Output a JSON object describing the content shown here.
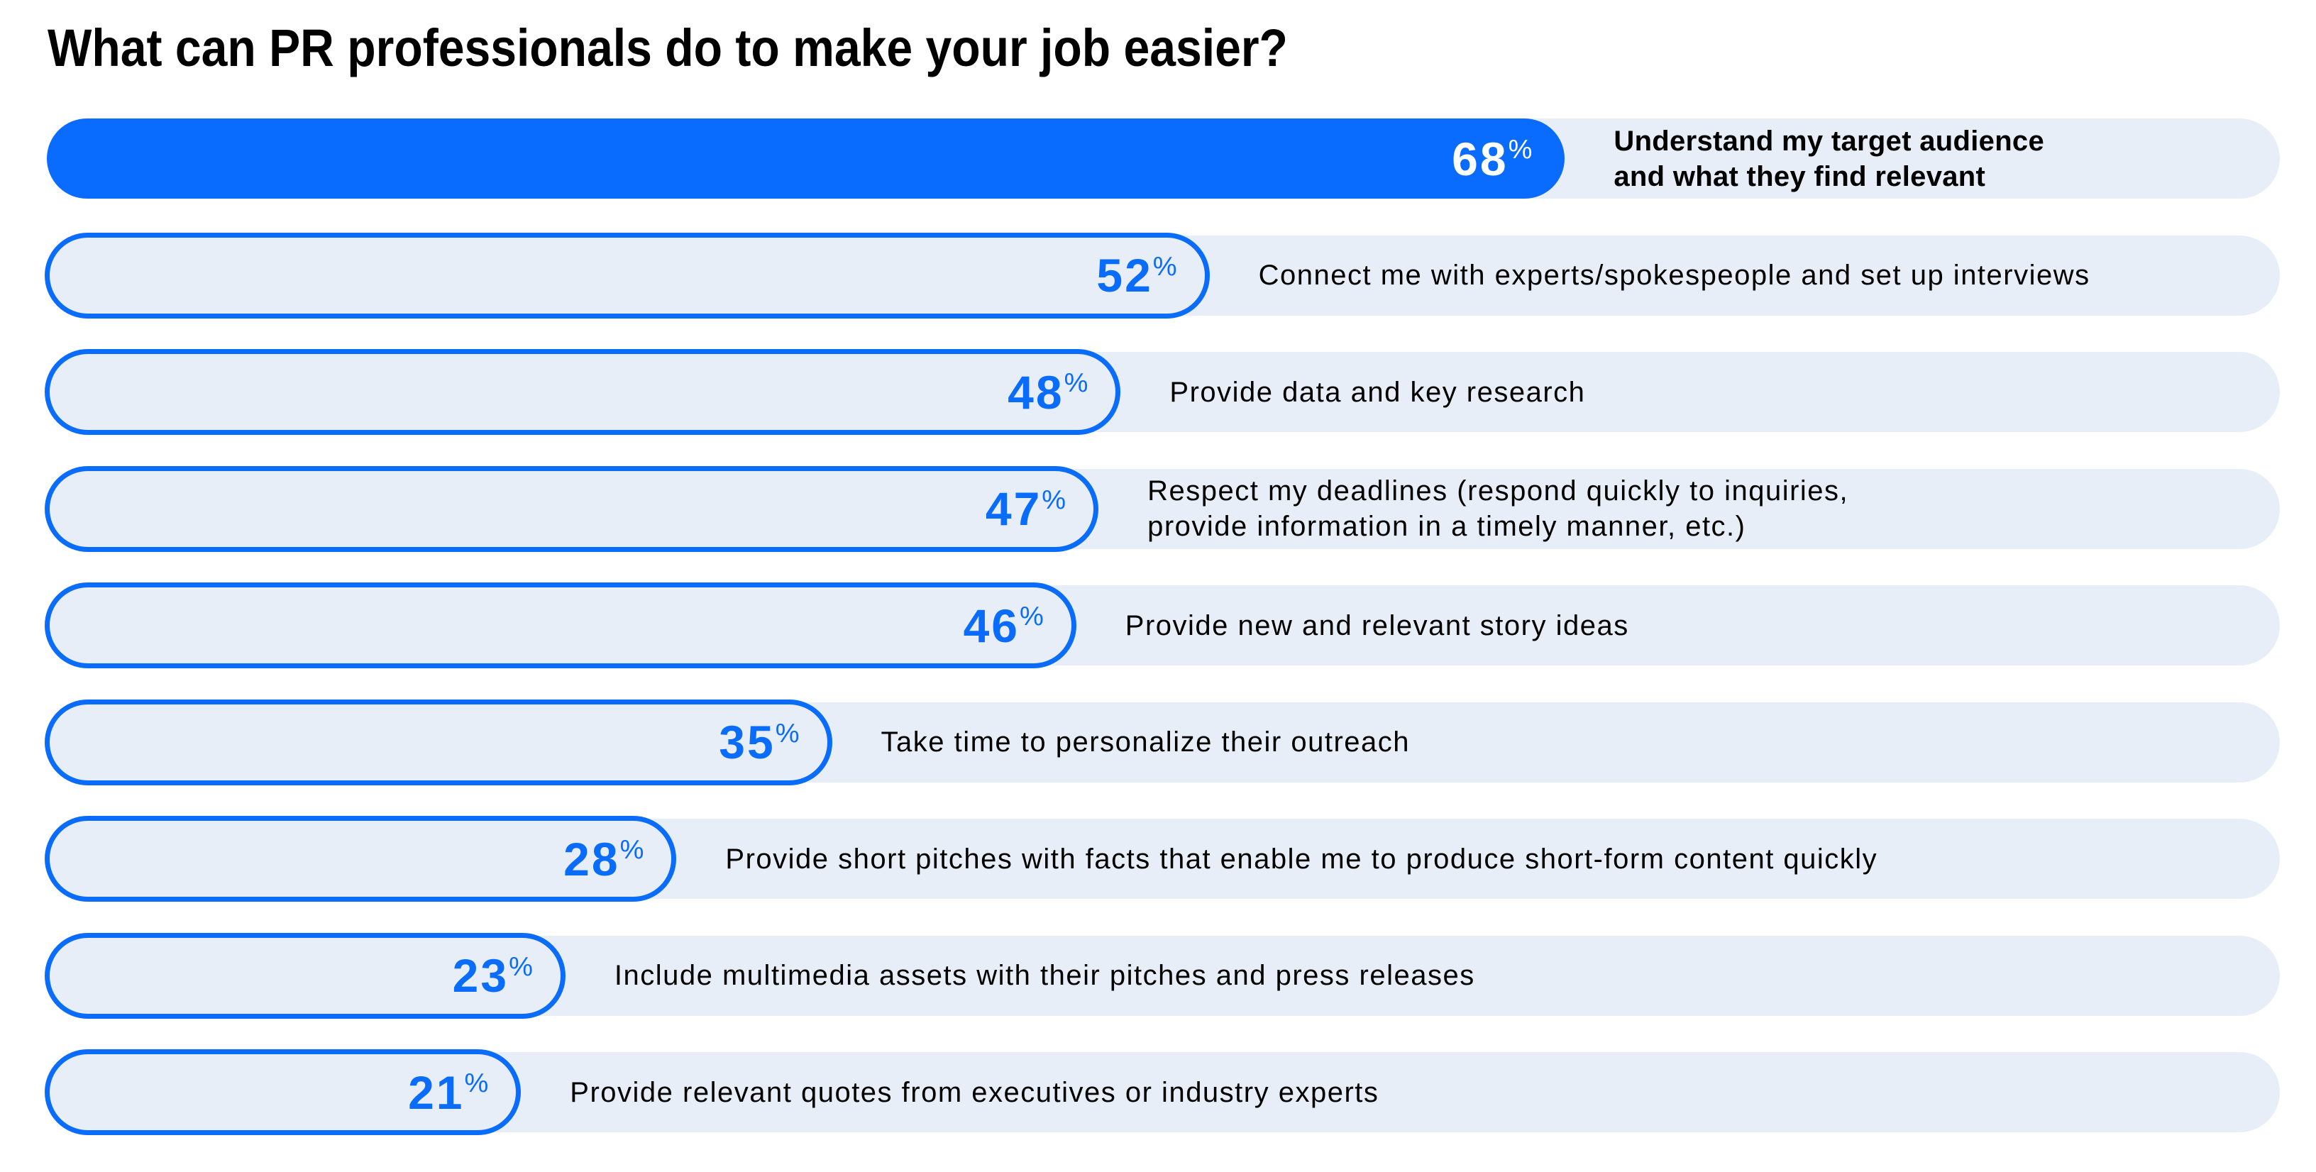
{
  "title": "What can PR professionals do to make your job easier?",
  "colors": {
    "accent": "#0A6BFF",
    "outline": "#0A6CFB",
    "track": "#E8EEF8",
    "label_text": "#000000",
    "highlight_value_text": "#FFFFFF"
  },
  "chart_data": {
    "type": "bar",
    "orientation": "horizontal",
    "title": "What can PR professionals do to make your job easier?",
    "xlabel": "",
    "ylabel": "",
    "xlim": [
      0,
      100
    ],
    "unit": "%",
    "highlight_index": 0,
    "categories": [
      "Understand my target audience\nand what they find relevant",
      "Connect me with experts/spokespeople and set up interviews",
      "Provide data and key research",
      "Respect my deadlines (respond quickly to inquiries,\nprovide information in a timely manner, etc.)",
      "Provide new and relevant story ideas",
      "Take time to personalize their outreach",
      "Provide short pitches with facts that enable me to produce short-form content quickly",
      "Include multimedia assets with their pitches and press releases",
      "Provide relevant quotes from executives or industry experts"
    ],
    "values": [
      68,
      52,
      48,
      47,
      46,
      35,
      28,
      23,
      21
    ],
    "value_labels": [
      "68",
      "52",
      "48",
      "47",
      "46",
      "35",
      "28",
      "23",
      "21"
    ]
  }
}
